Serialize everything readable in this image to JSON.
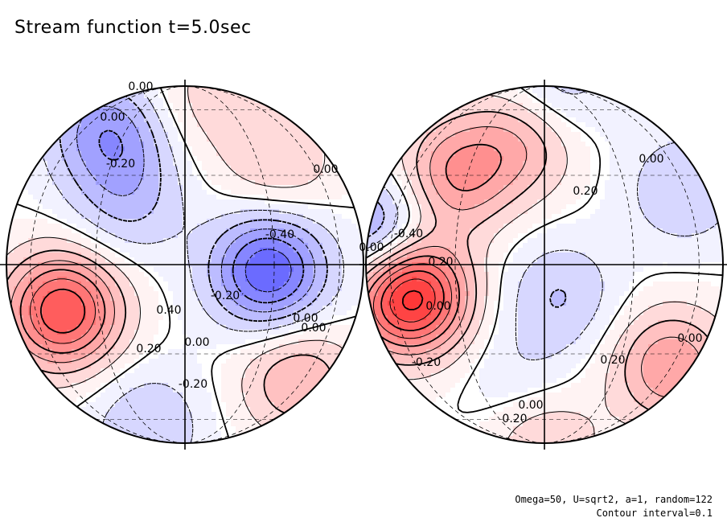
{
  "chart_data": {
    "type": "contour",
    "title": "Stream function t=5.0sec",
    "projection": "two orthographic hemispheres",
    "contour_interval": 0.1,
    "positive_color": "#ff3b3b",
    "negative_color": "#2a2aff",
    "annotations": [
      "Omega=50, U=sqrt2, a=1, random=122",
      "Contour interval=0.1"
    ],
    "hemispheres": [
      {
        "labels": [
          "0.00",
          "0.00",
          "-0.20",
          "0.00",
          "-0.40",
          "0.40",
          "0.20",
          "0.00",
          "-0.20",
          "-0.20",
          "0.00",
          "0.00"
        ],
        "features": [
          {
            "lon": -45,
            "lat": -15,
            "value": 0.7
          },
          {
            "lon": -20,
            "lat": 20,
            "value": -0.2
          },
          {
            "lon": 10,
            "lat": 60,
            "value": 0.1
          },
          {
            "lon": -30,
            "lat": 45,
            "value": -0.2
          },
          {
            "lon": 55,
            "lat": -40,
            "value": 0.3
          },
          {
            "lon": -50,
            "lat": 50,
            "value": -0.2
          },
          {
            "lon": -30,
            "lat": -65,
            "value": -0.2
          },
          {
            "lon": 28,
            "lat": -2,
            "value": -0.6
          },
          {
            "lon": 40,
            "lat": 35,
            "value": 0.2
          },
          {
            "lon": 0,
            "lat": 80,
            "value": 0.05
          }
        ]
      },
      {
        "labels": [
          "0.00",
          "0.20",
          "-0.40",
          "0.20",
          "0.00",
          "-0.20",
          "0.00",
          "0.20",
          "0.20",
          "0.00",
          "0.00"
        ],
        "features": [
          {
            "lon": -50,
            "lat": -10,
            "value": 0.9
          },
          {
            "lon": -35,
            "lat": 30,
            "value": 0.4
          },
          {
            "lon": -10,
            "lat": 45,
            "value": 0.3
          },
          {
            "lon": -75,
            "lat": 10,
            "value": -0.4
          },
          {
            "lon": 10,
            "lat": 75,
            "value": -0.2
          },
          {
            "lon": 60,
            "lat": -35,
            "value": 0.4
          },
          {
            "lon": 0,
            "lat": -80,
            "value": 0.2
          },
          {
            "lon": 5,
            "lat": -10,
            "value": -0.2
          },
          {
            "lon": -10,
            "lat": -40,
            "value": -0.1
          },
          {
            "lon": 60,
            "lat": 25,
            "value": -0.2
          }
        ]
      }
    ]
  }
}
